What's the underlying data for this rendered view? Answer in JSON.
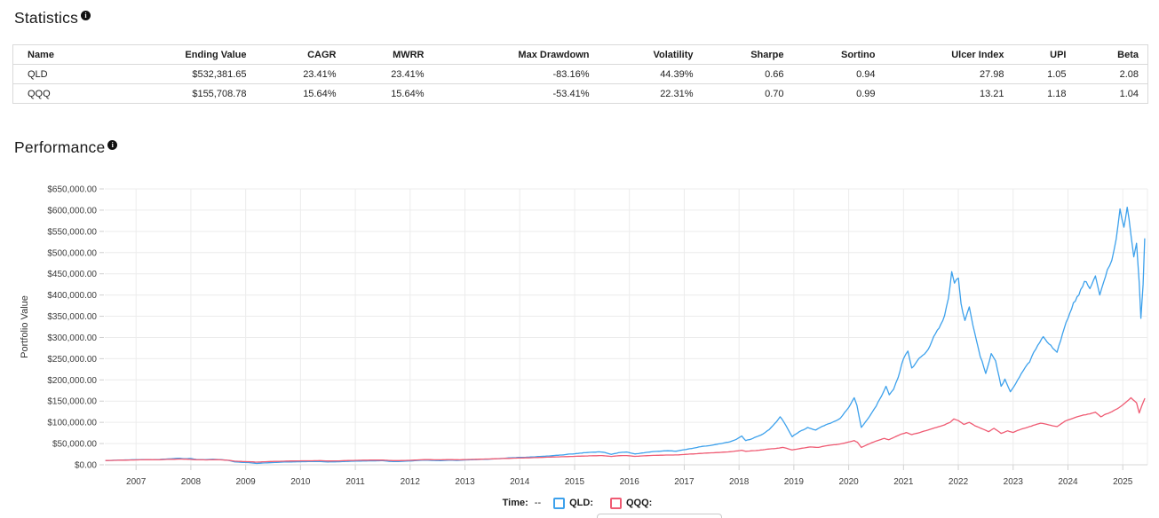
{
  "statistics": {
    "title": "Statistics",
    "info_icon": "i",
    "columns": [
      "Name",
      "Ending Value",
      "CAGR",
      "MWRR",
      "Max Drawdown",
      "Volatility",
      "Sharpe",
      "Sortino",
      "Ulcer Index",
      "UPI",
      "Beta"
    ],
    "rows": [
      [
        "QLD",
        "$532,381.65",
        "23.41%",
        "23.41%",
        "-83.16%",
        "44.39%",
        "0.66",
        "0.94",
        "27.98",
        "1.05",
        "2.08"
      ],
      [
        "QQQ",
        "$155,708.78",
        "15.64%",
        "15.64%",
        "-53.41%",
        "22.31%",
        "0.70",
        "0.99",
        "13.21",
        "1.18",
        "1.04"
      ]
    ]
  },
  "performance": {
    "title": "Performance",
    "info_icon": "i"
  },
  "legend": {
    "time_label": "Time:",
    "time_value": "--",
    "items": [
      {
        "label": "QLD:",
        "value": "",
        "color": "#3da1ec"
      },
      {
        "label": "QQQ:",
        "value": "",
        "color": "#ef5b73"
      }
    ]
  },
  "chart_data": {
    "type": "line",
    "title": "Performance",
    "xlabel": "",
    "ylabel": "Portfolio Value",
    "xlim": [
      2006.43,
      2025.45
    ],
    "ylim": [
      0,
      650000
    ],
    "y_tick_step": 50000,
    "grid": true,
    "legend_position": "bottom",
    "y_tick_labels": [
      "$0.00",
      "$50,000.00",
      "$100,000.00",
      "$150,000.00",
      "$200,000.00",
      "$250,000.00",
      "$300,000.00",
      "$350,000.00",
      "$400,000.00",
      "$450,000.00",
      "$500,000.00",
      "$550,000.00",
      "$600,000.00",
      "$650,000.00"
    ],
    "x_ticks": [
      "2007",
      "2008",
      "2009",
      "2010",
      "2011",
      "2012",
      "2013",
      "2014",
      "2015",
      "2016",
      "2017",
      "2018",
      "2019",
      "2020",
      "2021",
      "2022",
      "2023",
      "2024",
      "2025"
    ],
    "series": [
      {
        "name": "QLD",
        "color": "#3da1ec",
        "volatility": 0.4439,
        "points": [
          [
            2006.45,
            10000
          ],
          [
            2006.6,
            10600
          ],
          [
            2006.8,
            11400
          ],
          [
            2007.0,
            11900
          ],
          [
            2007.15,
            12400
          ],
          [
            2007.3,
            11800
          ],
          [
            2007.5,
            13200
          ],
          [
            2007.65,
            14300
          ],
          [
            2007.8,
            15500
          ],
          [
            2007.9,
            14200
          ],
          [
            2008.0,
            14800
          ],
          [
            2008.1,
            12500
          ],
          [
            2008.25,
            12000
          ],
          [
            2008.4,
            13000
          ],
          [
            2008.55,
            12200
          ],
          [
            2008.7,
            10000
          ],
          [
            2008.8,
            6800
          ],
          [
            2008.95,
            5600
          ],
          [
            2009.05,
            5200
          ],
          [
            2009.2,
            3200
          ],
          [
            2009.35,
            4400
          ],
          [
            2009.5,
            5300
          ],
          [
            2009.7,
            6400
          ],
          [
            2009.9,
            7000
          ],
          [
            2010.1,
            7300
          ],
          [
            2010.3,
            7900
          ],
          [
            2010.5,
            6700
          ],
          [
            2010.7,
            7200
          ],
          [
            2010.9,
            8200
          ],
          [
            2011.1,
            8800
          ],
          [
            2011.3,
            9300
          ],
          [
            2011.5,
            9700
          ],
          [
            2011.62,
            8000
          ],
          [
            2011.75,
            7600
          ],
          [
            2011.9,
            8400
          ],
          [
            2012.05,
            9200
          ],
          [
            2012.25,
            11000
          ],
          [
            2012.4,
            10300
          ],
          [
            2012.55,
            9800
          ],
          [
            2012.7,
            10800
          ],
          [
            2012.85,
            10300
          ],
          [
            2013.0,
            11200
          ],
          [
            2013.2,
            12200
          ],
          [
            2013.4,
            13000
          ],
          [
            2013.6,
            14400
          ],
          [
            2013.8,
            16200
          ],
          [
            2014.0,
            17500
          ],
          [
            2014.2,
            18300
          ],
          [
            2014.4,
            19800
          ],
          [
            2014.6,
            21500
          ],
          [
            2014.8,
            23500
          ],
          [
            2015.0,
            26000
          ],
          [
            2015.2,
            28500
          ],
          [
            2015.45,
            30500
          ],
          [
            2015.55,
            29000
          ],
          [
            2015.67,
            24500
          ],
          [
            2015.8,
            28500
          ],
          [
            2015.95,
            30000
          ],
          [
            2016.1,
            25500
          ],
          [
            2016.3,
            29000
          ],
          [
            2016.5,
            31500
          ],
          [
            2016.7,
            33000
          ],
          [
            2016.85,
            32000
          ],
          [
            2017.0,
            35500
          ],
          [
            2017.2,
            40000
          ],
          [
            2017.4,
            44000
          ],
          [
            2017.6,
            48500
          ],
          [
            2017.8,
            53000
          ],
          [
            2017.95,
            60000
          ],
          [
            2018.05,
            68000
          ],
          [
            2018.12,
            57000
          ],
          [
            2018.25,
            62000
          ],
          [
            2018.4,
            70000
          ],
          [
            2018.55,
            83000
          ],
          [
            2018.65,
            97000
          ],
          [
            2018.75,
            113000
          ],
          [
            2018.82,
            100000
          ],
          [
            2018.9,
            82000
          ],
          [
            2018.97,
            66000
          ],
          [
            2019.1,
            78000
          ],
          [
            2019.25,
            88000
          ],
          [
            2019.4,
            82000
          ],
          [
            2019.55,
            92000
          ],
          [
            2019.7,
            100000
          ],
          [
            2019.85,
            110000
          ],
          [
            2020.0,
            135000
          ],
          [
            2020.1,
            158000
          ],
          [
            2020.15,
            140000
          ],
          [
            2020.23,
            88000
          ],
          [
            2020.3,
            100000
          ],
          [
            2020.4,
            118000
          ],
          [
            2020.5,
            138000
          ],
          [
            2020.6,
            162000
          ],
          [
            2020.68,
            185000
          ],
          [
            2020.74,
            165000
          ],
          [
            2020.82,
            178000
          ],
          [
            2020.9,
            205000
          ],
          [
            2021.0,
            250000
          ],
          [
            2021.08,
            268000
          ],
          [
            2021.15,
            228000
          ],
          [
            2021.25,
            245000
          ],
          [
            2021.35,
            258000
          ],
          [
            2021.45,
            272000
          ],
          [
            2021.55,
            302000
          ],
          [
            2021.65,
            322000
          ],
          [
            2021.75,
            352000
          ],
          [
            2021.82,
            392000
          ],
          [
            2021.88,
            455000
          ],
          [
            2021.93,
            428000
          ],
          [
            2022.0,
            440000
          ],
          [
            2022.05,
            380000
          ],
          [
            2022.12,
            340000
          ],
          [
            2022.2,
            372000
          ],
          [
            2022.3,
            310000
          ],
          [
            2022.4,
            255000
          ],
          [
            2022.5,
            215000
          ],
          [
            2022.6,
            262000
          ],
          [
            2022.68,
            245000
          ],
          [
            2022.78,
            185000
          ],
          [
            2022.85,
            202000
          ],
          [
            2022.95,
            172000
          ],
          [
            2023.05,
            192000
          ],
          [
            2023.15,
            215000
          ],
          [
            2023.3,
            242000
          ],
          [
            2023.45,
            282000
          ],
          [
            2023.55,
            302000
          ],
          [
            2023.65,
            285000
          ],
          [
            2023.8,
            265000
          ],
          [
            2023.9,
            308000
          ],
          [
            2024.0,
            345000
          ],
          [
            2024.1,
            382000
          ],
          [
            2024.2,
            400000
          ],
          [
            2024.3,
            432000
          ],
          [
            2024.4,
            415000
          ],
          [
            2024.5,
            445000
          ],
          [
            2024.58,
            400000
          ],
          [
            2024.65,
            430000
          ],
          [
            2024.72,
            460000
          ],
          [
            2024.8,
            482000
          ],
          [
            2024.88,
            532000
          ],
          [
            2024.95,
            603000
          ],
          [
            2025.02,
            560000
          ],
          [
            2025.08,
            607000
          ],
          [
            2025.15,
            540000
          ],
          [
            2025.2,
            490000
          ],
          [
            2025.25,
            522000
          ],
          [
            2025.3,
            430000
          ],
          [
            2025.33,
            345000
          ],
          [
            2025.37,
            425000
          ],
          [
            2025.4,
            532381
          ]
        ]
      },
      {
        "name": "QQQ",
        "color": "#ef5b73",
        "volatility": 0.2231,
        "points": [
          [
            2006.45,
            10000
          ],
          [
            2006.7,
            10800
          ],
          [
            2007.0,
            11500
          ],
          [
            2007.2,
            12000
          ],
          [
            2007.4,
            11800
          ],
          [
            2007.6,
            12800
          ],
          [
            2007.8,
            13500
          ],
          [
            2007.95,
            13000
          ],
          [
            2008.1,
            11800
          ],
          [
            2008.3,
            11500
          ],
          [
            2008.5,
            12000
          ],
          [
            2008.7,
            10500
          ],
          [
            2008.8,
            8600
          ],
          [
            2008.95,
            7600
          ],
          [
            2009.1,
            7200
          ],
          [
            2009.2,
            6300
          ],
          [
            2009.35,
            7200
          ],
          [
            2009.55,
            8000
          ],
          [
            2009.75,
            8700
          ],
          [
            2009.95,
            9200
          ],
          [
            2010.15,
            9400
          ],
          [
            2010.35,
            9800
          ],
          [
            2010.5,
            8900
          ],
          [
            2010.7,
            9300
          ],
          [
            2010.9,
            10200
          ],
          [
            2011.1,
            10700
          ],
          [
            2011.3,
            11000
          ],
          [
            2011.5,
            11200
          ],
          [
            2011.65,
            10000
          ],
          [
            2011.8,
            9800
          ],
          [
            2011.95,
            10400
          ],
          [
            2012.15,
            11400
          ],
          [
            2012.3,
            12200
          ],
          [
            2012.5,
            11600
          ],
          [
            2012.7,
            12200
          ],
          [
            2012.9,
            11800
          ],
          [
            2013.1,
            12600
          ],
          [
            2013.3,
            13200
          ],
          [
            2013.5,
            13900
          ],
          [
            2013.7,
            14800
          ],
          [
            2013.9,
            15600
          ],
          [
            2014.1,
            16300
          ],
          [
            2014.3,
            17000
          ],
          [
            2014.5,
            17900
          ],
          [
            2014.7,
            18600
          ],
          [
            2014.9,
            19500
          ],
          [
            2015.1,
            20300
          ],
          [
            2015.3,
            21200
          ],
          [
            2015.5,
            21800
          ],
          [
            2015.67,
            19600
          ],
          [
            2015.8,
            21400
          ],
          [
            2015.95,
            21800
          ],
          [
            2016.1,
            19800
          ],
          [
            2016.3,
            21400
          ],
          [
            2016.5,
            22300
          ],
          [
            2016.7,
            23000
          ],
          [
            2016.9,
            23400
          ],
          [
            2017.1,
            25200
          ],
          [
            2017.3,
            26800
          ],
          [
            2017.5,
            28200
          ],
          [
            2017.7,
            29600
          ],
          [
            2017.9,
            31500
          ],
          [
            2018.05,
            34200
          ],
          [
            2018.12,
            31800
          ],
          [
            2018.3,
            33500
          ],
          [
            2018.5,
            36500
          ],
          [
            2018.7,
            39000
          ],
          [
            2018.8,
            41000
          ],
          [
            2018.97,
            35000
          ],
          [
            2019.15,
            39000
          ],
          [
            2019.3,
            42000
          ],
          [
            2019.45,
            41000
          ],
          [
            2019.6,
            45000
          ],
          [
            2019.8,
            48000
          ],
          [
            2019.95,
            52000
          ],
          [
            2020.1,
            57000
          ],
          [
            2020.16,
            53000
          ],
          [
            2020.23,
            41000
          ],
          [
            2020.35,
            48000
          ],
          [
            2020.5,
            56000
          ],
          [
            2020.65,
            62000
          ],
          [
            2020.73,
            59000
          ],
          [
            2020.85,
            66000
          ],
          [
            2020.95,
            72000
          ],
          [
            2021.05,
            76000
          ],
          [
            2021.15,
            71000
          ],
          [
            2021.3,
            76000
          ],
          [
            2021.45,
            82000
          ],
          [
            2021.6,
            88000
          ],
          [
            2021.75,
            94000
          ],
          [
            2021.85,
            100000
          ],
          [
            2021.92,
            108000
          ],
          [
            2022.0,
            104000
          ],
          [
            2022.1,
            95000
          ],
          [
            2022.2,
            100000
          ],
          [
            2022.3,
            92000
          ],
          [
            2022.45,
            84000
          ],
          [
            2022.55,
            78000
          ],
          [
            2022.65,
            86000
          ],
          [
            2022.78,
            74000
          ],
          [
            2022.9,
            80000
          ],
          [
            2023.0,
            76000
          ],
          [
            2023.15,
            84000
          ],
          [
            2023.3,
            90000
          ],
          [
            2023.5,
            98000
          ],
          [
            2023.65,
            94000
          ],
          [
            2023.8,
            90000
          ],
          [
            2023.95,
            103000
          ],
          [
            2024.1,
            110000
          ],
          [
            2024.25,
            116000
          ],
          [
            2024.4,
            120000
          ],
          [
            2024.5,
            124000
          ],
          [
            2024.6,
            113000
          ],
          [
            2024.7,
            120000
          ],
          [
            2024.8,
            125000
          ],
          [
            2024.9,
            132000
          ],
          [
            2025.0,
            141000
          ],
          [
            2025.08,
            150000
          ],
          [
            2025.15,
            158000
          ],
          [
            2025.25,
            146000
          ],
          [
            2025.3,
            122000
          ],
          [
            2025.35,
            140000
          ],
          [
            2025.4,
            155709
          ]
        ]
      }
    ]
  }
}
